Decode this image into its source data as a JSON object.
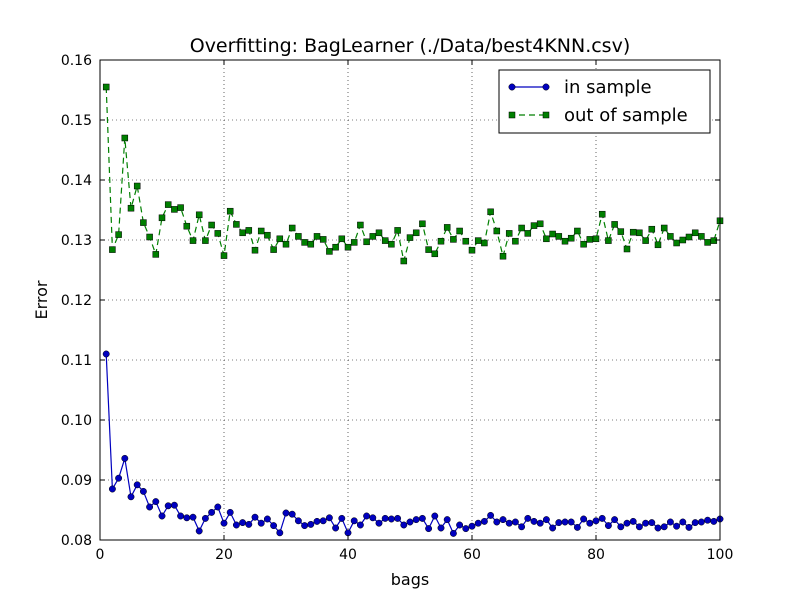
{
  "chart_data": {
    "type": "line",
    "title": "Overfitting: BagLearner (./Data/best4KNN.csv)",
    "xlabel": "bags",
    "ylabel": "Error",
    "xlim": [
      0,
      100
    ],
    "ylim": [
      0.08,
      0.16
    ],
    "x_ticks": [
      "0",
      "20",
      "40",
      "60",
      "80",
      "100"
    ],
    "y_ticks": [
      "0.08",
      "0.09",
      "0.10",
      "0.11",
      "0.12",
      "0.13",
      "0.14",
      "0.15",
      "0.16"
    ],
    "grid": true,
    "legend_position": "top-right",
    "x": [
      1,
      2,
      3,
      4,
      5,
      6,
      7,
      8,
      9,
      10,
      11,
      12,
      13,
      14,
      15,
      16,
      17,
      18,
      19,
      20,
      21,
      22,
      23,
      24,
      25,
      26,
      27,
      28,
      29,
      30,
      31,
      32,
      33,
      34,
      35,
      36,
      37,
      38,
      39,
      40,
      41,
      42,
      43,
      44,
      45,
      46,
      47,
      48,
      49,
      50,
      51,
      52,
      53,
      54,
      55,
      56,
      57,
      58,
      59,
      60,
      61,
      62,
      63,
      64,
      65,
      66,
      67,
      68,
      69,
      70,
      71,
      72,
      73,
      74,
      75,
      76,
      77,
      78,
      79,
      80,
      81,
      82,
      83,
      84,
      85,
      86,
      87,
      88,
      89,
      90,
      91,
      92,
      93,
      94,
      95,
      96,
      97,
      98,
      99,
      100
    ],
    "series": [
      {
        "name": "in sample",
        "color": "#0000bf",
        "marker": "circle",
        "linestyle": "solid",
        "values": [
          0.111,
          0.0885,
          0.0903,
          0.0936,
          0.0872,
          0.0892,
          0.0881,
          0.0855,
          0.0864,
          0.084,
          0.0857,
          0.0858,
          0.084,
          0.0837,
          0.0838,
          0.0815,
          0.0836,
          0.0846,
          0.0855,
          0.0828,
          0.0846,
          0.0825,
          0.0829,
          0.0826,
          0.0838,
          0.0828,
          0.0835,
          0.0824,
          0.0812,
          0.0845,
          0.0843,
          0.0832,
          0.0824,
          0.0826,
          0.0831,
          0.0832,
          0.0837,
          0.082,
          0.0836,
          0.0812,
          0.0832,
          0.0825,
          0.084,
          0.0837,
          0.0828,
          0.0836,
          0.0835,
          0.0836,
          0.0825,
          0.083,
          0.0834,
          0.0836,
          0.0819,
          0.084,
          0.082,
          0.0834,
          0.0811,
          0.0825,
          0.0819,
          0.0823,
          0.0828,
          0.0831,
          0.0841,
          0.083,
          0.0834,
          0.0828,
          0.083,
          0.0822,
          0.0836,
          0.0831,
          0.0828,
          0.0834,
          0.082,
          0.0829,
          0.083,
          0.083,
          0.0821,
          0.0835,
          0.0828,
          0.0832,
          0.0836,
          0.0824,
          0.0834,
          0.0822,
          0.0828,
          0.0831,
          0.0822,
          0.0828,
          0.0829,
          0.082,
          0.0822,
          0.083,
          0.0823,
          0.083,
          0.0821,
          0.0829,
          0.083,
          0.0833,
          0.0831,
          0.0835
        ]
      },
      {
        "name": "out of sample",
        "color": "#007f00",
        "marker": "square",
        "linestyle": "dashed",
        "values": [
          0.1555,
          0.1284,
          0.1309,
          0.147,
          0.1353,
          0.139,
          0.1329,
          0.1305,
          0.1276,
          0.1337,
          0.1359,
          0.1351,
          0.1354,
          0.1323,
          0.1299,
          0.1342,
          0.1299,
          0.1325,
          0.1311,
          0.1274,
          0.1348,
          0.1326,
          0.1312,
          0.1316,
          0.1283,
          0.1315,
          0.1308,
          0.1284,
          0.1302,
          0.1293,
          0.132,
          0.1306,
          0.1296,
          0.1293,
          0.1306,
          0.1301,
          0.1281,
          0.1288,
          0.1302,
          0.1288,
          0.1296,
          0.1325,
          0.1297,
          0.1306,
          0.1312,
          0.1299,
          0.1293,
          0.1316,
          0.1265,
          0.1304,
          0.1312,
          0.1327,
          0.1284,
          0.1277,
          0.1298,
          0.1321,
          0.1301,
          0.1315,
          0.1298,
          0.1283,
          0.1299,
          0.1295,
          0.1347,
          0.1315,
          0.1273,
          0.1311,
          0.1298,
          0.132,
          0.1311,
          0.1324,
          0.1327,
          0.1302,
          0.131,
          0.1306,
          0.1298,
          0.1303,
          0.1315,
          0.1293,
          0.1301,
          0.1302,
          0.1343,
          0.1299,
          0.1326,
          0.1314,
          0.1285,
          0.1313,
          0.1312,
          0.1299,
          0.1318,
          0.1292,
          0.132,
          0.1306,
          0.1295,
          0.13,
          0.1305,
          0.1312,
          0.1306,
          0.1296,
          0.1299,
          0.1332
        ]
      }
    ]
  }
}
